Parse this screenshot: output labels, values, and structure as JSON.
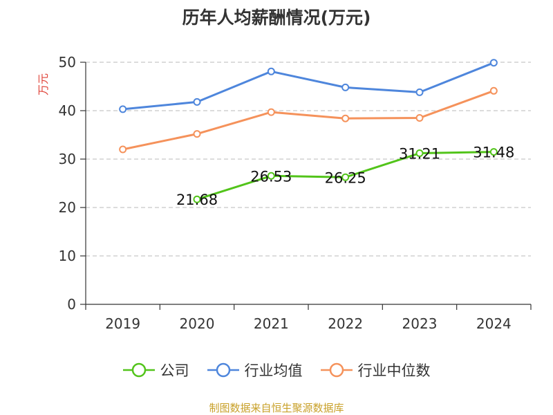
{
  "chart_data": {
    "type": "line",
    "title": "历年人均薪酬情况(万元)",
    "ylabel": "万元",
    "xlabel": "",
    "categories": [
      "2019",
      "2020",
      "2021",
      "2022",
      "2023",
      "2024"
    ],
    "ylim": [
      0,
      50
    ],
    "yticks": [
      0,
      10,
      20,
      30,
      40,
      50
    ],
    "grid": true,
    "legend_position": "bottom",
    "series": [
      {
        "name": "公司",
        "color": "#52c41a",
        "values": [
          null,
          21.68,
          26.53,
          26.25,
          31.21,
          31.48
        ],
        "labels": [
          "",
          "21.68",
          "26.53",
          "26.25",
          "31.21",
          "31.48"
        ]
      },
      {
        "name": "行业均值",
        "color": "#4e86dc",
        "values": [
          40.3,
          41.8,
          48.1,
          44.8,
          43.8,
          49.9
        ]
      },
      {
        "name": "行业中位数",
        "color": "#f5925b",
        "values": [
          32.0,
          35.2,
          39.7,
          38.4,
          38.5,
          44.1
        ]
      }
    ]
  },
  "source": "制图数据来自恒生聚源数据库"
}
